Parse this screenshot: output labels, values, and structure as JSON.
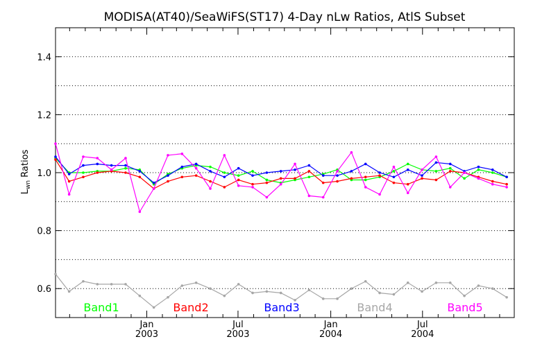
{
  "chart_data": {
    "type": "line",
    "title": "MODISA(AT40)/SeaWiFS(ST17) 4-Day nLw Ratios, AtlS Subset",
    "ylabel": {
      "main": "L",
      "sub": "wn",
      "rest": " Ratios"
    },
    "xlabel": "",
    "ylim": [
      0.5,
      1.5
    ],
    "xlim": [
      "2002-07-04",
      "2004-12-30"
    ],
    "grid": "horizontal dotted",
    "legend_position": "bottom",
    "y_ticks": [
      {
        "value": 0.6,
        "label": "0.6"
      },
      {
        "value": 0.8,
        "label": "0.8"
      },
      {
        "value": 1.0,
        "label": "1.0"
      },
      {
        "value": 1.2,
        "label": "1.2"
      },
      {
        "value": 1.4,
        "label": "1.4"
      }
    ],
    "y_grid": [
      0.6,
      0.7,
      0.8,
      0.9,
      1.0,
      1.1,
      1.2,
      1.3,
      1.4
    ],
    "x_ticks": [
      {
        "date": "2003-01-01",
        "label1": "Jan",
        "label2": "2003"
      },
      {
        "date": "2003-07-01",
        "label1": "Jul",
        "label2": "2003"
      },
      {
        "date": "2004-01-01",
        "label1": "Jan",
        "label2": "2004"
      },
      {
        "date": "2004-07-01",
        "label1": "Jul",
        "label2": "2004"
      }
    ],
    "x_minor_ticks": [
      "2002-08-01",
      "2002-09-01",
      "2002-10-01",
      "2002-11-01",
      "2002-12-01",
      "2003-02-01",
      "2003-03-01",
      "2003-04-01",
      "2003-05-01",
      "2003-06-01",
      "2003-08-01",
      "2003-09-01",
      "2003-10-01",
      "2003-11-01",
      "2003-12-01",
      "2004-02-01",
      "2004-03-01",
      "2004-04-01",
      "2004-05-01",
      "2004-06-01",
      "2004-08-01",
      "2004-09-01",
      "2004-10-01",
      "2004-11-01",
      "2004-12-01"
    ],
    "x": [
      "2002-07-04",
      "2002-07-31",
      "2002-08-28",
      "2002-09-25",
      "2002-10-23",
      "2002-11-20",
      "2002-12-18",
      "2003-01-15",
      "2003-02-12",
      "2003-03-12",
      "2003-04-09",
      "2003-05-07",
      "2003-06-04",
      "2003-07-02",
      "2003-07-30",
      "2003-08-27",
      "2003-09-24",
      "2003-10-22",
      "2003-11-19",
      "2003-12-17",
      "2004-01-14",
      "2004-02-11",
      "2004-03-10",
      "2004-04-07",
      "2004-05-05",
      "2004-06-02",
      "2004-06-30",
      "2004-07-28",
      "2004-08-25",
      "2004-09-22",
      "2004-10-20",
      "2004-11-17",
      "2004-12-15"
    ],
    "series": [
      {
        "name": "Band1",
        "color": "#00ff00",
        "values": [
          1.05,
          1.0,
          1.0,
          1.005,
          1.005,
          1.015,
          1.01,
          0.96,
          0.995,
          1.015,
          1.025,
          1.02,
          1.0,
          0.99,
          1.005,
          0.975,
          0.965,
          0.975,
          0.985,
          0.995,
          1.01,
          0.975,
          0.975,
          0.985,
          1.005,
          1.03,
          1.01,
          1.005,
          1.015,
          0.98,
          1.01,
          1.0,
          0.985
        ]
      },
      {
        "name": "Band2",
        "color": "#ff0000",
        "values": [
          1.045,
          0.97,
          0.985,
          1.0,
          1.005,
          1.0,
          0.985,
          0.945,
          0.97,
          0.985,
          0.99,
          0.97,
          0.95,
          0.975,
          0.96,
          0.965,
          0.98,
          0.98,
          1.005,
          0.965,
          0.97,
          0.98,
          0.985,
          0.99,
          0.965,
          0.96,
          0.98,
          0.975,
          1.005,
          1.0,
          0.985,
          0.97,
          0.96
        ]
      },
      {
        "name": "Band3",
        "color": "#0000ff",
        "values": [
          1.055,
          0.995,
          1.025,
          1.03,
          1.025,
          1.025,
          1.005,
          0.965,
          0.99,
          1.02,
          1.03,
          1.005,
          0.985,
          1.015,
          0.99,
          1.0,
          1.005,
          1.01,
          1.025,
          0.99,
          0.99,
          1.005,
          1.03,
          1.0,
          0.985,
          1.01,
          0.99,
          1.035,
          1.03,
          1.005,
          1.02,
          1.01,
          0.985
        ]
      },
      {
        "name": "Band4",
        "color": "#a6a6a6",
        "values": [
          0.65,
          0.59,
          0.625,
          0.615,
          0.615,
          0.615,
          0.575,
          0.535,
          0.57,
          0.61,
          0.62,
          0.6,
          0.575,
          0.615,
          0.585,
          0.59,
          0.585,
          0.56,
          0.595,
          0.565,
          0.565,
          0.6,
          0.625,
          0.585,
          0.58,
          0.62,
          0.59,
          0.62,
          0.62,
          0.575,
          0.61,
          0.6,
          0.57
        ]
      },
      {
        "name": "Band5",
        "color": "#ff00ff",
        "values": [
          1.1,
          0.925,
          1.055,
          1.05,
          1.01,
          1.05,
          0.865,
          0.945,
          1.06,
          1.065,
          1.015,
          0.945,
          1.06,
          0.955,
          0.95,
          0.915,
          0.96,
          1.03,
          0.92,
          0.915,
          1.005,
          1.07,
          0.95,
          0.925,
          1.02,
          0.93,
          1.01,
          1.055,
          0.95,
          1.0,
          0.98,
          0.96,
          0.95
        ]
      }
    ]
  }
}
